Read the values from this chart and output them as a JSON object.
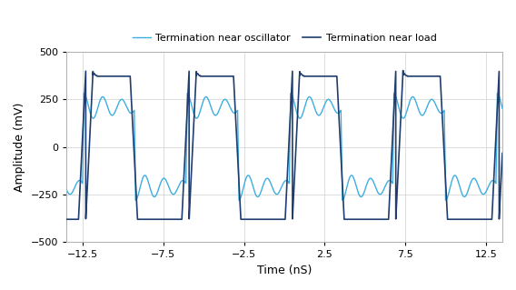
{
  "xlabel": "Time (nS)",
  "ylabel": "Amplitude (mV)",
  "xlim": [
    -13.5,
    13.5
  ],
  "ylim": [
    -500,
    500
  ],
  "xticks": [
    -12.5,
    -7.5,
    -2.5,
    2.5,
    7.5,
    12.5
  ],
  "yticks": [
    -500,
    -250,
    0,
    250,
    500
  ],
  "legend1": "Termination near load",
  "legend2": "Termination near oscillator",
  "color_dark": "#1f3d6e",
  "color_light": "#3daee0",
  "period": 6.4,
  "background_color": "#ffffff",
  "grid_color": "#d0d0d0"
}
